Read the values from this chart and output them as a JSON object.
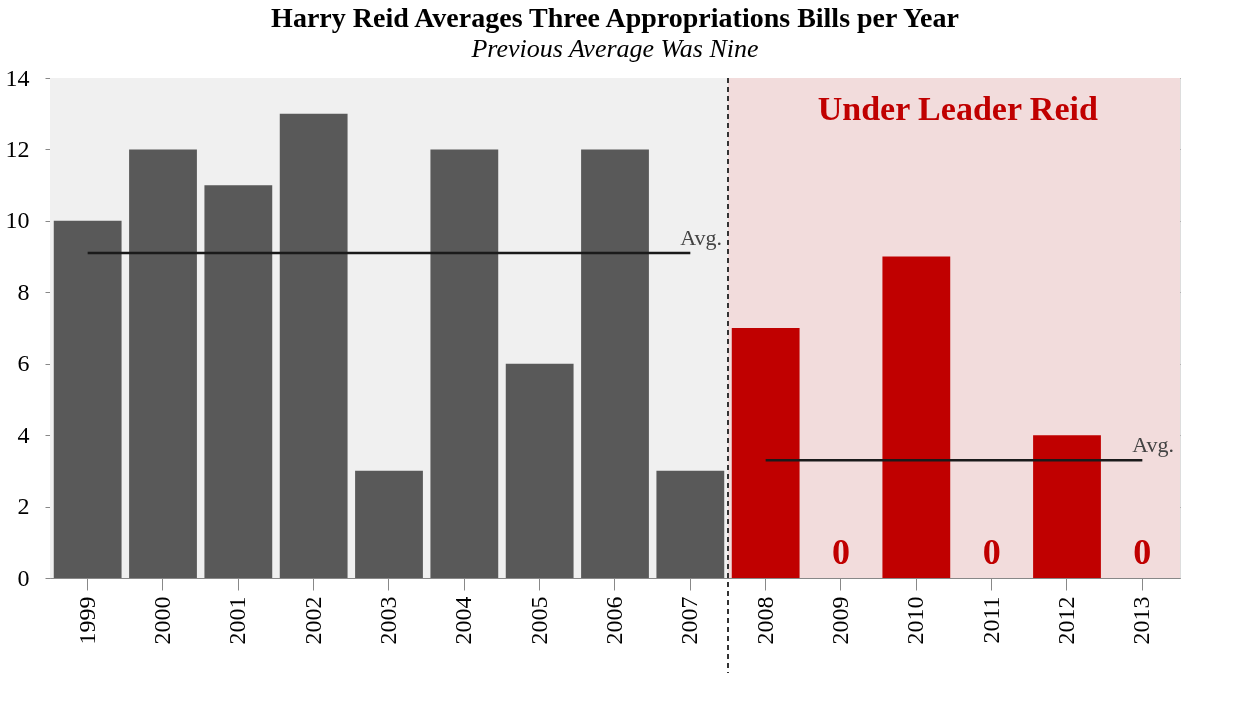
{
  "chart_data": {
    "type": "bar",
    "title": "Harry Reid Averages Three Appropriations Bills per Year",
    "subtitle": "Previous Average Was Nine",
    "categories": [
      "1999",
      "2000",
      "2001",
      "2002",
      "2003",
      "2004",
      "2005",
      "2006",
      "2007",
      "2008",
      "2009",
      "2010",
      "2011",
      "2012",
      "2013"
    ],
    "series": [
      {
        "values": [
          10,
          12,
          11,
          13,
          3,
          12,
          6,
          12,
          3,
          7,
          0,
          9,
          0,
          4,
          0
        ],
        "colors": [
          "#595959",
          "#595959",
          "#595959",
          "#595959",
          "#595959",
          "#595959",
          "#595959",
          "#595959",
          "#595959",
          "#c00000",
          "#c00000",
          "#c00000",
          "#c00000",
          "#c00000",
          "#c00000"
        ],
        "value_labels": [
          null,
          null,
          null,
          null,
          null,
          null,
          null,
          null,
          null,
          null,
          "0",
          null,
          "0",
          null,
          "0"
        ]
      },
      {
        "type": "line",
        "name": "Avg.",
        "color": "#1a1a1a",
        "values": [
          9.1,
          9.1,
          9.1,
          9.1,
          9.1,
          9.1,
          9.1,
          9.1,
          9.1,
          null,
          null,
          null,
          null,
          null,
          null
        ]
      },
      {
        "type": "line",
        "name": "Avg.",
        "color": "#1a1a1a",
        "values": [
          null,
          null,
          null,
          null,
          null,
          null,
          null,
          null,
          null,
          3.3,
          3.3,
          3.3,
          3.3,
          3.3,
          3.3
        ]
      }
    ],
    "bands": [
      {
        "axis": "x",
        "from": "1999",
        "to": "2007",
        "label": null,
        "color": "#f0f0f0"
      },
      {
        "axis": "x",
        "from": "2008",
        "to": "2013",
        "label": "Under Leader Reid",
        "color": "#f2dcdc"
      }
    ],
    "ref_lines": [
      {
        "axis": "x",
        "value": "2008",
        "label": null,
        "color": "#333333",
        "line_style": "dashed"
      }
    ],
    "ylim": [
      0,
      14
    ],
    "yticks": [
      0,
      2,
      4,
      6,
      8,
      10,
      12,
      14
    ],
    "grid": "y"
  }
}
